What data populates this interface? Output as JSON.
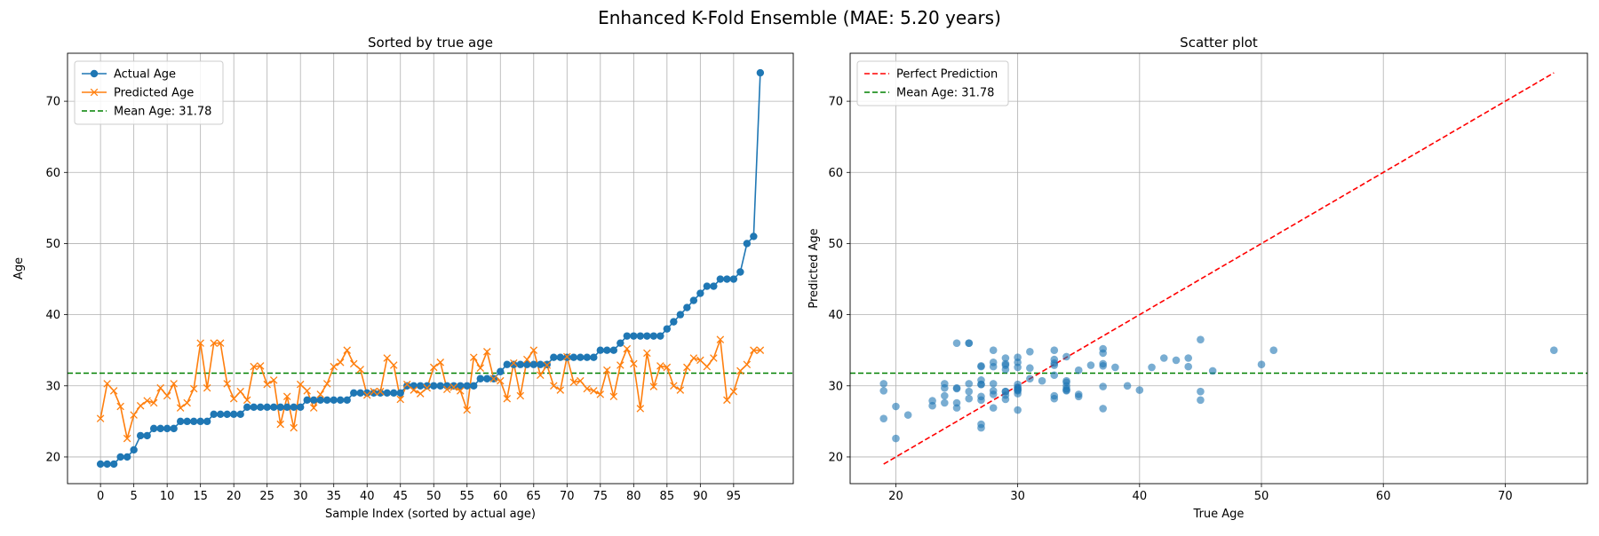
{
  "figure": {
    "suptitle": "Enhanced K-Fold Ensemble (MAE: 5.20 years)"
  },
  "colors": {
    "actual": "#1f77b4",
    "predicted": "#ff7f0e",
    "mean": "#008000",
    "perfect": "#ff0000",
    "scatter": "#1f77b4",
    "grid": "#b0b0b0"
  },
  "chart_data": [
    {
      "type": "line",
      "title": "Sorted by true age",
      "xlabel": "Sample Index (sorted by actual age)",
      "ylabel": "Age",
      "xlim": [
        -4.95,
        103.95
      ],
      "ylim": [
        16.25,
        76.75
      ],
      "xticks": [
        0,
        5,
        10,
        15,
        20,
        25,
        30,
        35,
        40,
        45,
        50,
        55,
        60,
        65,
        70,
        75,
        80,
        85,
        90,
        95
      ],
      "yticks": [
        20,
        30,
        40,
        50,
        60,
        70
      ],
      "grid": true,
      "legend": "top-left",
      "legend_labels": [
        "Actual Age",
        "Predicted Age",
        "Mean Age: 31.78"
      ],
      "mean_value": 31.78,
      "series": [
        {
          "name": "Actual Age",
          "values": [
            19,
            19,
            19,
            20,
            20,
            21,
            23,
            23,
            24,
            24,
            24,
            24,
            25,
            25,
            25,
            25,
            25,
            26,
            26,
            26,
            26,
            26,
            27,
            27,
            27,
            27,
            27,
            27,
            27,
            27,
            27,
            28,
            28,
            28,
            28,
            28,
            28,
            28,
            29,
            29,
            29,
            29,
            29,
            29,
            29,
            29,
            30,
            30,
            30,
            30,
            30,
            30,
            30,
            30,
            30,
            30,
            30,
            31,
            31,
            31,
            32,
            33,
            33,
            33,
            33,
            33,
            33,
            33,
            34,
            34,
            34,
            34,
            34,
            34,
            34,
            35,
            35,
            35,
            36,
            37,
            37,
            37,
            37,
            37,
            37,
            38,
            39,
            40,
            41,
            42,
            43,
            44,
            44,
            45,
            45,
            45,
            46,
            50,
            51,
            74
          ]
        },
        {
          "name": "Predicted Age",
          "values": [
            25.4,
            30.3,
            29.3,
            27.1,
            22.6,
            25.9,
            27.2,
            27.9,
            27.6,
            29.7,
            28.6,
            30.3,
            26.9,
            27.6,
            29.6,
            36.0,
            29.7,
            36.0,
            36.0,
            30.3,
            28.2,
            29.2,
            28.0,
            32.7,
            32.8,
            30.2,
            30.8,
            24.6,
            28.5,
            24.1,
            30.2,
            29.3,
            26.9,
            28.8,
            30.3,
            32.7,
            33.3,
            35.0,
            33.1,
            32.3,
            28.7,
            29.2,
            29.2,
            33.9,
            32.9,
            28.1,
            30.2,
            29.4,
            28.9,
            29.7,
            32.6,
            33.3,
            29.5,
            29.8,
            29.3,
            26.6,
            34.0,
            32.5,
            34.8,
            31.0,
            30.7,
            28.2,
            33.2,
            28.6,
            33.7,
            35.0,
            31.5,
            32.9,
            30.0,
            29.4,
            34.1,
            30.5,
            30.7,
            29.6,
            29.3,
            28.8,
            32.2,
            28.5,
            32.9,
            35.2,
            33.1,
            26.8,
            34.6,
            29.9,
            32.8,
            32.6,
            30.0,
            29.4,
            32.6,
            33.9,
            33.6,
            32.7,
            33.9,
            36.5,
            28.0,
            29.2,
            32.1,
            33.0,
            35.0,
            35.0
          ]
        }
      ]
    },
    {
      "type": "scatter",
      "title": "Scatter plot",
      "xlabel": "True Age",
      "ylabel": "Predicted Age",
      "xlim": [
        16.25,
        76.75
      ],
      "ylim": [
        16.25,
        76.75
      ],
      "xticks": [
        20,
        30,
        40,
        50,
        60,
        70
      ],
      "yticks": [
        20,
        30,
        40,
        50,
        60,
        70
      ],
      "grid": true,
      "legend": "top-left",
      "legend_labels": [
        "Perfect Prediction",
        "Mean Age: 31.78"
      ],
      "mean_value": 31.78,
      "perfect_line": [
        [
          19,
          19
        ],
        [
          74,
          74
        ]
      ],
      "x_source": "chart_data.0.series.0.values",
      "y_source": "chart_data.0.series.1.values"
    }
  ]
}
